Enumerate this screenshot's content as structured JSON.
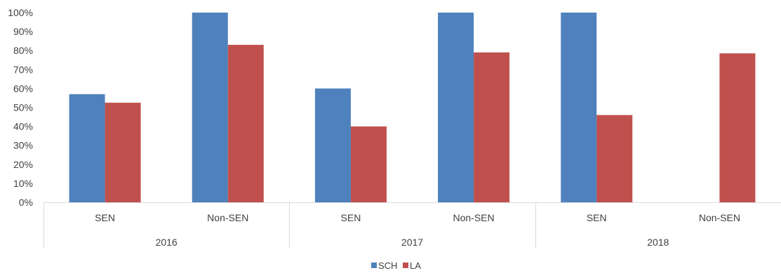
{
  "chart_data": {
    "type": "bar",
    "title": "",
    "xlabel": "",
    "ylabel": "",
    "ylim": [
      0,
      100
    ],
    "y_ticks": [
      "0%",
      "10%",
      "20%",
      "30%",
      "40%",
      "50%",
      "60%",
      "70%",
      "80%",
      "90%",
      "100%"
    ],
    "groups": [
      "2016",
      "2017",
      "2018"
    ],
    "categories": [
      "SEN",
      "Non-SEN",
      "SEN",
      "Non-SEN",
      "SEN",
      "Non-SEN"
    ],
    "series": [
      {
        "name": "SCH",
        "color": "#4f81bd",
        "values": [
          57,
          100,
          60,
          100,
          100,
          null
        ]
      },
      {
        "name": "LA",
        "color": "#c0504d",
        "values": [
          52.5,
          83,
          40,
          79,
          46,
          78.5
        ]
      }
    ],
    "grid": false,
    "legend_position": "bottom"
  }
}
